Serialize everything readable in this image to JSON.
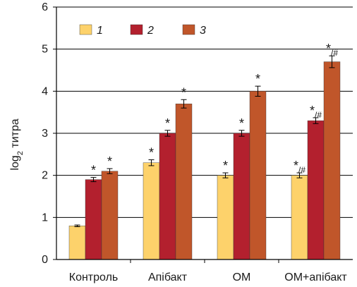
{
  "colors": {
    "1": "#fdd26b",
    "2": "#b3202e",
    "3": "#c0562a",
    "axis": "#000000",
    "grid": "#000000"
  },
  "chart_data": {
    "type": "bar",
    "title": "",
    "xlabel": "",
    "ylabel": {
      "prefix": "log",
      "sub": "2",
      "suffix": " титра"
    },
    "ylim": [
      0,
      6
    ],
    "yticks": [
      "0",
      "1",
      "2",
      "3",
      "4",
      "5",
      "6"
    ],
    "grid": "horizontal",
    "legend_position": "top-left",
    "categories": [
      "Контроль",
      "Апібакт",
      "ОМ",
      "ОМ+апібакт"
    ],
    "series": [
      {
        "name": "1",
        "values": [
          0.8,
          2.3,
          2.0,
          2.0
        ],
        "errors": [
          0.02,
          0.07,
          0.06,
          0.06
        ],
        "annotations": [
          "",
          "*",
          "*",
          "*/#"
        ]
      },
      {
        "name": "2",
        "values": [
          1.9,
          3.0,
          3.0,
          3.3
        ],
        "errors": [
          0.05,
          0.07,
          0.07,
          0.07
        ],
        "annotations": [
          "*",
          "*",
          "*",
          "*/#"
        ]
      },
      {
        "name": "3",
        "values": [
          2.1,
          3.7,
          4.0,
          4.7
        ],
        "errors": [
          0.06,
          0.1,
          0.12,
          0.14
        ],
        "annotations": [
          "*",
          "*",
          "*",
          "*/#"
        ]
      }
    ]
  }
}
